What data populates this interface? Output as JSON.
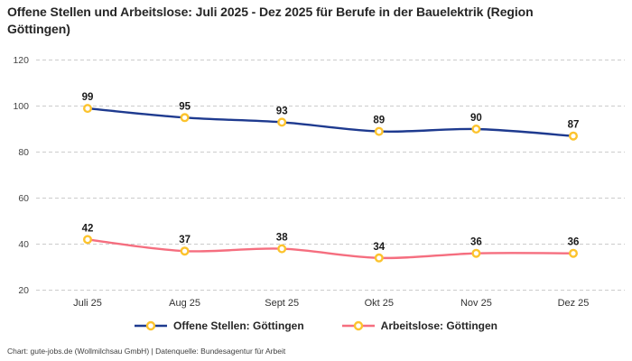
{
  "header": {
    "title": "Offene Stellen und Arbeitslose: Juli 2025 - Dez 2025 für Berufe in der Bauelektrik (Region Göttingen)"
  },
  "footer": {
    "credit": "Chart: gute-jobs.de (Wollmilchsau GmbH) | Datenquelle: Bundesagentur für Arbeit"
  },
  "colors": {
    "series_blue": "#1e3a8f",
    "series_pink": "#f56e7f",
    "marker_yellow": "#fcc32d",
    "marker_fill": "#ffffff",
    "gridline": "#cccccc",
    "title_text": "#262626",
    "axis_text": "#444444",
    "data_label_text": "#1a1a1a"
  },
  "chart_data": {
    "type": "line",
    "title": "Offene Stellen und Arbeitslose: Juli 2025 - Dez 2025 für Berufe in der Bauelektrik (Region Göttingen)",
    "categories": [
      "Juli 25",
      "Aug 25",
      "Sept 25",
      "Okt 25",
      "Nov 25",
      "Dez 25"
    ],
    "series": [
      {
        "name": "Offene Stellen: Göttingen",
        "color": "#1e3a8f",
        "values": [
          99,
          95,
          93,
          89,
          90,
          87
        ]
      },
      {
        "name": "Arbeitslose: Göttingen",
        "color": "#f56e7f",
        "values": [
          42,
          37,
          38,
          34,
          36,
          36
        ]
      }
    ],
    "xlabel": "",
    "ylabel": "",
    "ylim": [
      20,
      120
    ],
    "yticks": [
      20,
      40,
      60,
      80,
      100,
      120
    ],
    "grid": "horizontal-dashed",
    "legend_position": "bottom",
    "marker_color": "#fcc32d",
    "data_labels": true
  }
}
